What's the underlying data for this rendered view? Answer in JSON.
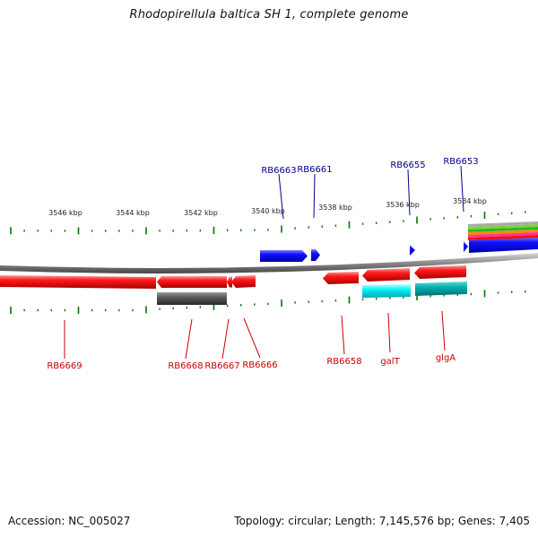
{
  "title": "Rhodopirellula baltica SH 1, complete genome",
  "footer": {
    "accession_label": "Accession:",
    "accession": "NC_005027",
    "topology_label": "Topology:",
    "topology": "circular",
    "length_label": "Length:",
    "length": "7,145,576 bp",
    "genes_label": "Genes:",
    "genes": "7,405"
  },
  "scale_labels": [
    "3546 kbp",
    "3544 kbp",
    "3542 kbp",
    "3540 kbp",
    "3538 kbp",
    "3536 kbp",
    "3534 kbp"
  ],
  "gene_labels_top": [
    "RB6663",
    "RB6661",
    "RB6655",
    "RB6653"
  ],
  "gene_labels_bottom": [
    "RB6669",
    "RB6668",
    "RB6667",
    "RB6666",
    "RB6658",
    "galT",
    "glgA"
  ],
  "colors": {
    "forward_gene": "#0000ee",
    "reverse_gene": "#ee0000",
    "top_label": "#00008b",
    "bottom_label": "#cc0000",
    "tick": "#007700",
    "backbone": "#888888",
    "feature_grey": "#555555",
    "feature_cyan": "#00e5ee",
    "feature_teal": "#00b2b2",
    "stack": [
      "#aaaaaa",
      "#77cc33",
      "#00cc00",
      "#ff8800",
      "#ff33aa",
      "#ee0000"
    ]
  }
}
